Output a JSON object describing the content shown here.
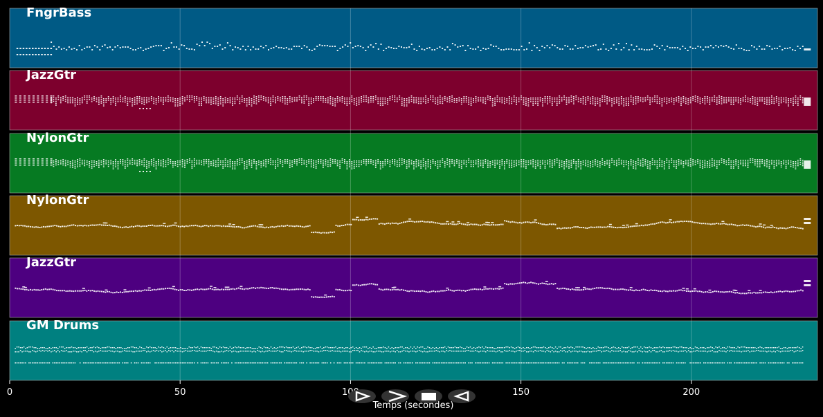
{
  "chart_data": {
    "type": "piano-roll",
    "xlabel": "Temps (secondes)",
    "xlim": [
      0,
      237
    ],
    "xticks": [
      0,
      50,
      100,
      150,
      200
    ],
    "grid": true,
    "tracks": [
      {
        "name": "FngrBass",
        "color": "#005a85",
        "pattern": "bass"
      },
      {
        "name": "JazzGtr",
        "color": "#7d002d",
        "pattern": "chords"
      },
      {
        "name": "NylonGtr",
        "color": "#067a22",
        "pattern": "chords"
      },
      {
        "name": "NylonGtr",
        "color": "#7d5700",
        "pattern": "melody"
      },
      {
        "name": "JazzGtr",
        "color": "#4d0080",
        "pattern": "melody"
      },
      {
        "name": "GM Drums",
        "color": "#008080",
        "pattern": "drums"
      }
    ]
  },
  "controls": {
    "icons": [
      "play-icon",
      "next-icon",
      "stop-icon",
      "previous-icon"
    ]
  }
}
